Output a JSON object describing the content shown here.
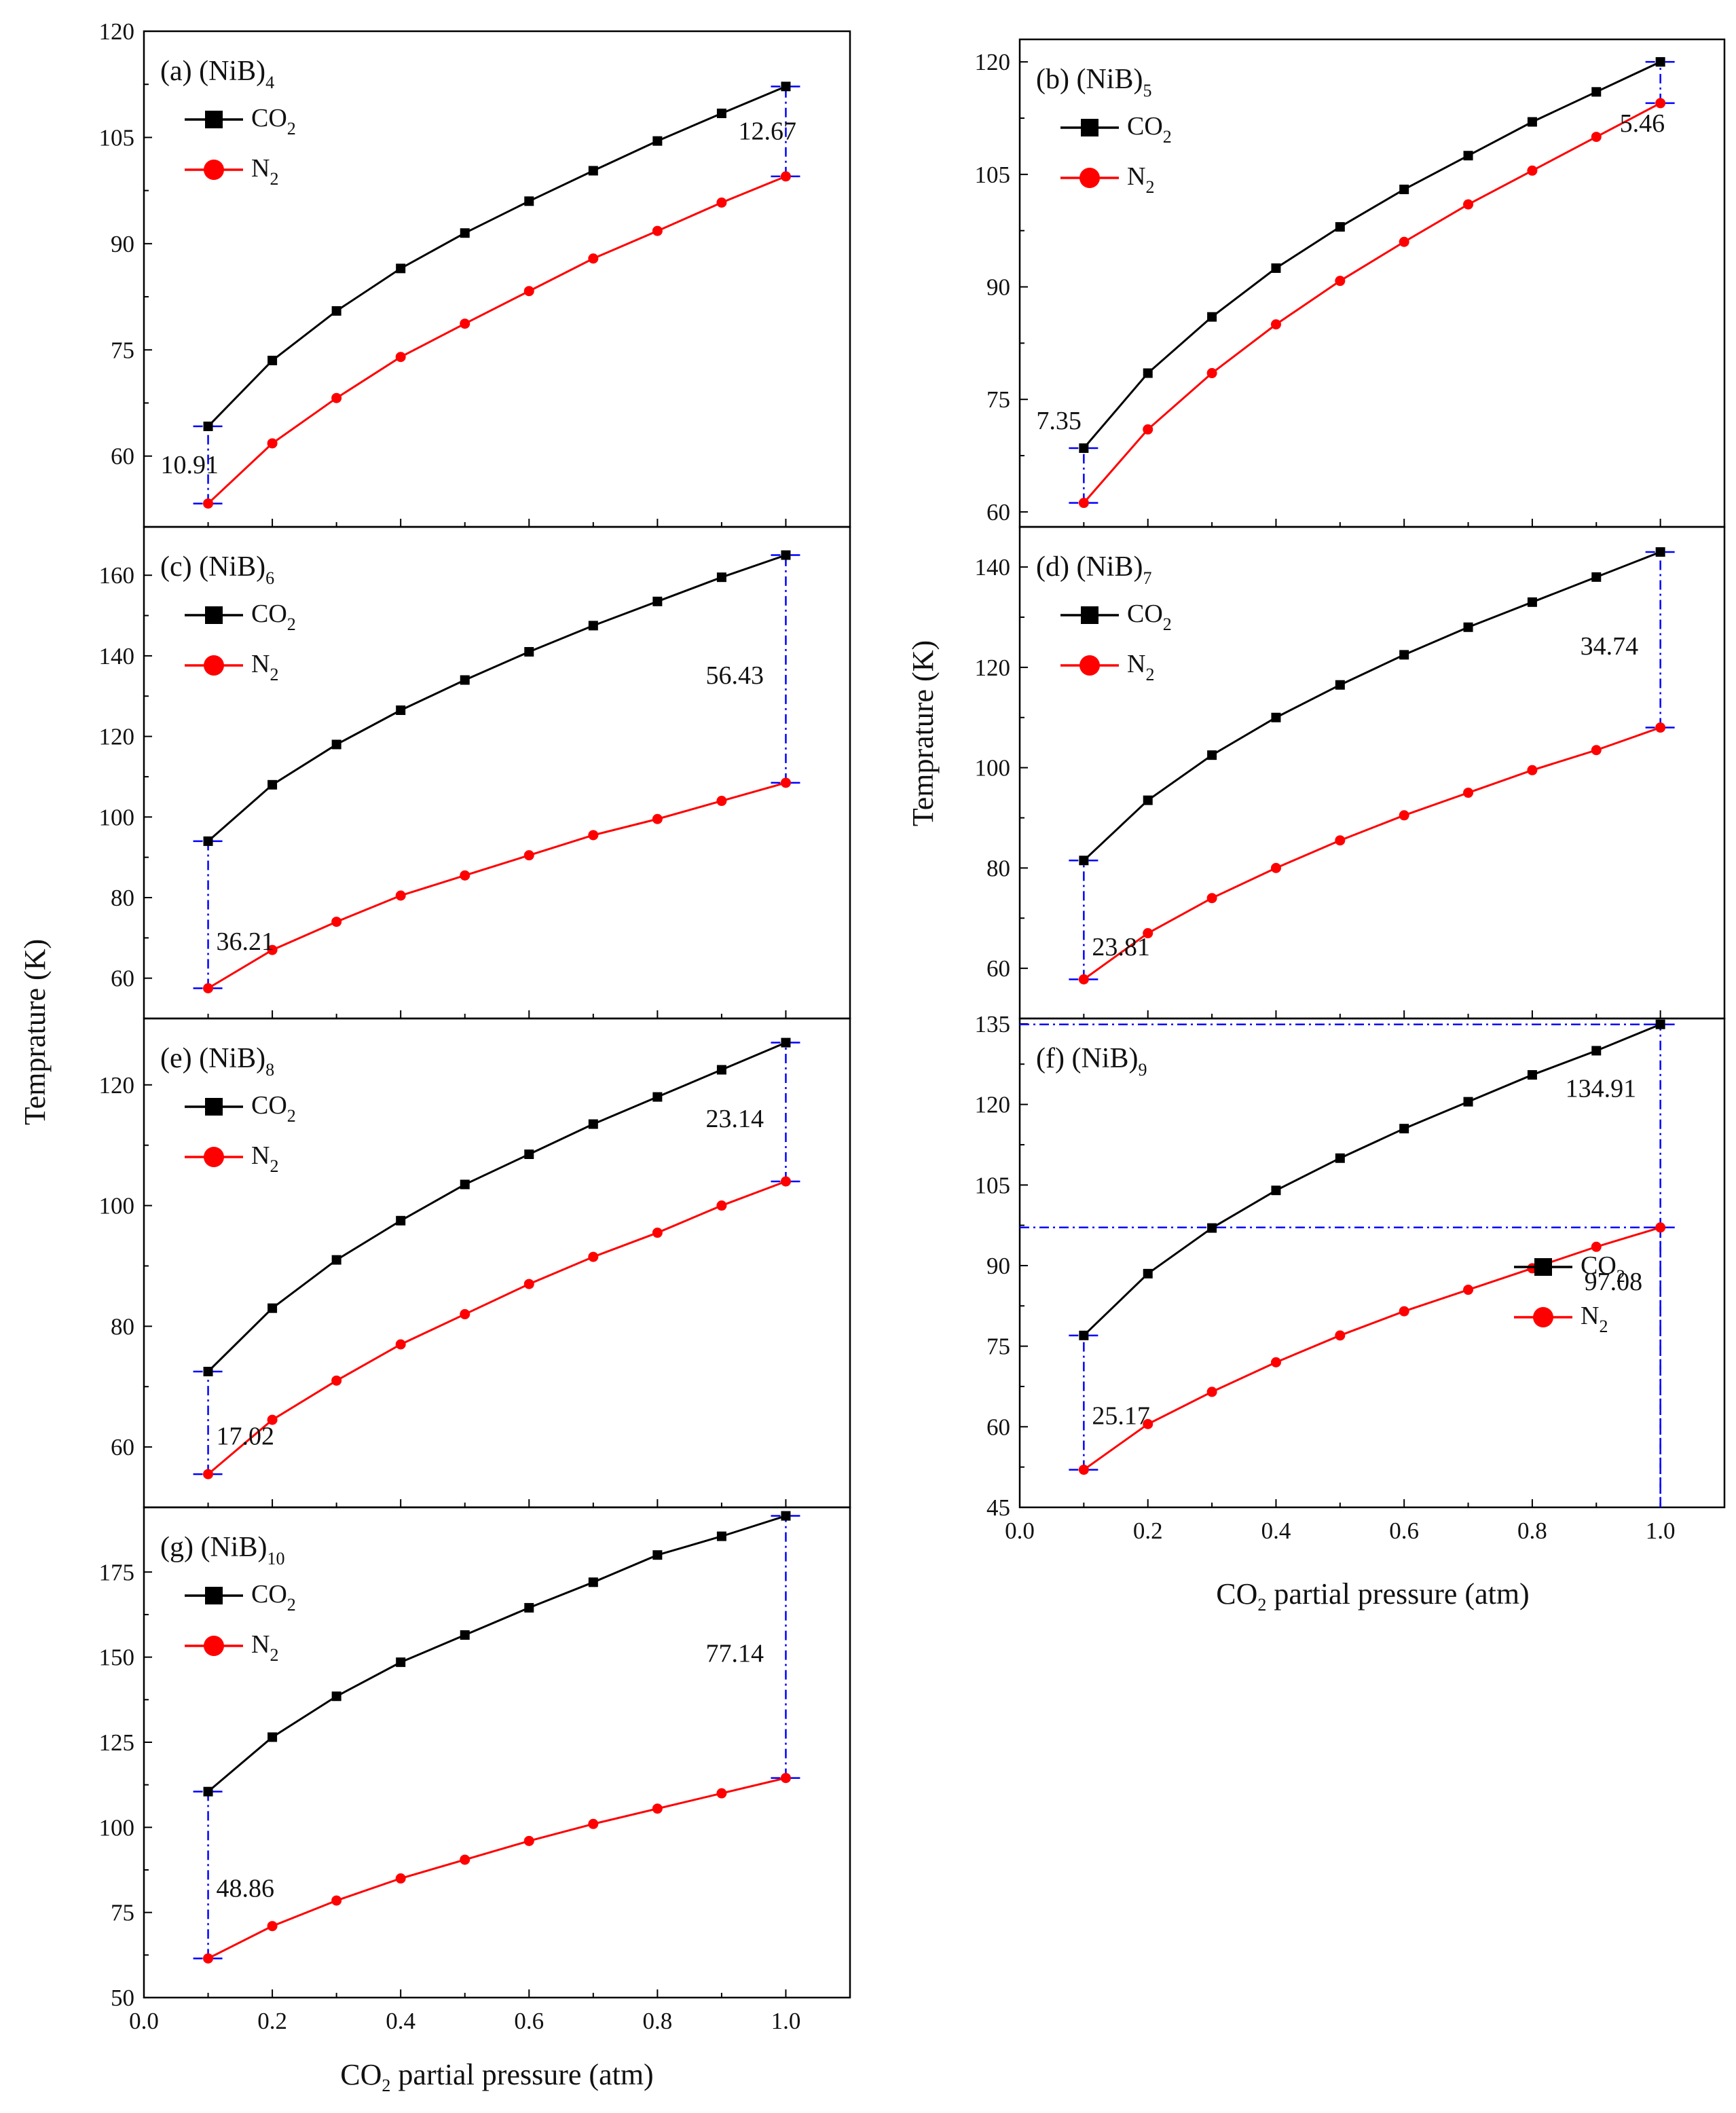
{
  "figure": {
    "ylabel": "Temprature (K)",
    "xlabel_left": {
      "main": "CO",
      "sub": "2",
      "rest": " partial pressure (atm)"
    },
    "xlabel_right": {
      "main": "CO",
      "sub": "2",
      "rest": " partial pressure (atm)"
    },
    "colors": {
      "co2": "#000000",
      "n2": "#ff0000",
      "guide": "#0000ff"
    }
  },
  "chart_data": [
    {
      "type": "line",
      "label_prefix": "(a) (NiB)",
      "label_sub": "4",
      "x": [
        0.1,
        0.2,
        0.3,
        0.4,
        0.5,
        0.6,
        0.7,
        0.8,
        0.9,
        1.0
      ],
      "series": [
        {
          "name": "CO2",
          "legend_main": "CO",
          "legend_sub": "2",
          "values": [
            64.2,
            73.5,
            80.5,
            86.5,
            91.5,
            96.0,
            100.3,
            104.5,
            108.4,
            112.2
          ]
        },
        {
          "name": "N2",
          "legend_main": "N",
          "legend_sub": "2",
          "values": [
            53.3,
            61.8,
            68.2,
            74.0,
            78.7,
            83.3,
            87.9,
            91.8,
            95.8,
            99.5
          ]
        }
      ],
      "ylim": [
        50,
        120
      ],
      "yticks": [
        60,
        75,
        90,
        105,
        120
      ],
      "xlim": [
        0,
        1.1
      ],
      "xticks": [
        0.0,
        0.2,
        0.4,
        0.6,
        0.8,
        1.0
      ],
      "legend": "top-left",
      "annotations": [
        {
          "text": "10.91",
          "x": 0.1,
          "y_low": 53.3,
          "y_high": 64.2
        },
        {
          "text": "12.67",
          "x": 1.0,
          "y_low": 99.5,
          "y_high": 112.2
        }
      ]
    },
    {
      "type": "line",
      "label_prefix": "(b) (NiB)",
      "label_sub": "5",
      "x": [
        0.1,
        0.2,
        0.3,
        0.4,
        0.5,
        0.6,
        0.7,
        0.8,
        0.9,
        1.0
      ],
      "series": [
        {
          "name": "CO2",
          "legend_main": "CO",
          "legend_sub": "2",
          "values": [
            68.5,
            78.5,
            86.0,
            92.5,
            98.0,
            103.0,
            107.5,
            112.0,
            116.0,
            120.0
          ]
        },
        {
          "name": "N2",
          "legend_main": "N",
          "legend_sub": "2",
          "values": [
            61.2,
            71.0,
            78.5,
            85.0,
            90.8,
            96.0,
            101.0,
            105.5,
            110.0,
            114.5
          ]
        }
      ],
      "ylim": [
        58,
        123
      ],
      "yticks": [
        60,
        75,
        90,
        105,
        120
      ],
      "xlim": [
        0,
        1.1
      ],
      "xticks": [
        0.0,
        0.2,
        0.4,
        0.6,
        0.8,
        1.0
      ],
      "legend": "top-left",
      "annotations": [
        {
          "text": "7.35",
          "x": 0.1,
          "y_low": 61.2,
          "y_high": 68.5
        },
        {
          "text": "5.46",
          "x": 1.0,
          "y_low": 114.5,
          "y_high": 120.0
        }
      ]
    },
    {
      "type": "line",
      "label_prefix": "(c) (NiB)",
      "label_sub": "6",
      "x": [
        0.1,
        0.2,
        0.3,
        0.4,
        0.5,
        0.6,
        0.7,
        0.8,
        0.9,
        1.0
      ],
      "series": [
        {
          "name": "CO2",
          "legend_main": "CO",
          "legend_sub": "2",
          "values": [
            94.0,
            108.0,
            118.0,
            126.5,
            134.0,
            141.0,
            147.5,
            153.5,
            159.5,
            165.0
          ]
        },
        {
          "name": "N2",
          "legend_main": "N",
          "legend_sub": "2",
          "values": [
            57.5,
            67.0,
            74.0,
            80.5,
            85.5,
            90.5,
            95.5,
            99.5,
            104.0,
            108.5
          ]
        }
      ],
      "ylim": [
        50,
        172
      ],
      "yticks": [
        60,
        80,
        100,
        120,
        140,
        160
      ],
      "xlim": [
        0,
        1.1
      ],
      "xticks": [
        0.0,
        0.2,
        0.4,
        0.6,
        0.8,
        1.0
      ],
      "legend": "top-left",
      "annotations": [
        {
          "text": "36.21",
          "x": 0.1,
          "y_low": 57.5,
          "y_high": 94.0
        },
        {
          "text": "56.43",
          "x": 1.0,
          "y_low": 108.5,
          "y_high": 165.0
        }
      ]
    },
    {
      "type": "line",
      "label_prefix": "(d) (NiB)",
      "label_sub": "7",
      "x": [
        0.1,
        0.2,
        0.3,
        0.4,
        0.5,
        0.6,
        0.7,
        0.8,
        0.9,
        1.0
      ],
      "series": [
        {
          "name": "CO2",
          "legend_main": "CO",
          "legend_sub": "2",
          "values": [
            81.5,
            93.5,
            102.5,
            110.0,
            116.5,
            122.5,
            128.0,
            133.0,
            138.0,
            143.0
          ]
        },
        {
          "name": "N2",
          "legend_main": "N",
          "legend_sub": "2",
          "values": [
            57.8,
            67.0,
            74.0,
            80.0,
            85.5,
            90.5,
            95.0,
            99.5,
            103.5,
            108.0
          ]
        }
      ],
      "ylim": [
        50,
        148
      ],
      "yticks": [
        60,
        80,
        100,
        120,
        140
      ],
      "xlim": [
        0,
        1.1
      ],
      "xticks": [
        0.0,
        0.2,
        0.4,
        0.6,
        0.8,
        1.0
      ],
      "legend": "top-left",
      "annotations": [
        {
          "text": "23.81",
          "x": 0.1,
          "y_low": 57.8,
          "y_high": 81.5
        },
        {
          "text": "34.74",
          "x": 1.0,
          "y_low": 108.0,
          "y_high": 143.0
        }
      ]
    },
    {
      "type": "line",
      "label_prefix": "(e) (NiB)",
      "label_sub": "8",
      "x": [
        0.1,
        0.2,
        0.3,
        0.4,
        0.5,
        0.6,
        0.7,
        0.8,
        0.9,
        1.0
      ],
      "series": [
        {
          "name": "CO2",
          "legend_main": "CO",
          "legend_sub": "2",
          "values": [
            72.5,
            83.0,
            91.0,
            97.5,
            103.5,
            108.5,
            113.5,
            118.0,
            122.5,
            127.0
          ]
        },
        {
          "name": "N2",
          "legend_main": "N",
          "legend_sub": "2",
          "values": [
            55.5,
            64.5,
            71.0,
            77.0,
            82.0,
            87.0,
            91.5,
            95.5,
            100.0,
            104.0
          ]
        }
      ],
      "ylim": [
        50,
        131
      ],
      "yticks": [
        60,
        80,
        100,
        120
      ],
      "xlim": [
        0,
        1.1
      ],
      "xticks": [
        0.0,
        0.2,
        0.4,
        0.6,
        0.8,
        1.0
      ],
      "legend": "top-left",
      "annotations": [
        {
          "text": "17.02",
          "x": 0.1,
          "y_low": 55.5,
          "y_high": 72.5
        },
        {
          "text": "23.14",
          "x": 1.0,
          "y_low": 104.0,
          "y_high": 127.0
        }
      ]
    },
    {
      "type": "line",
      "label_prefix": "(f) (NiB)",
      "label_sub": "9",
      "x": [
        0.1,
        0.2,
        0.3,
        0.4,
        0.5,
        0.6,
        0.7,
        0.8,
        0.9,
        1.0
      ],
      "series": [
        {
          "name": "CO2",
          "legend_main": "CO",
          "legend_sub": "2",
          "values": [
            77.0,
            88.5,
            97.0,
            104.0,
            110.0,
            115.5,
            120.5,
            125.5,
            130.0,
            134.9
          ]
        },
        {
          "name": "N2",
          "legend_main": "N",
          "legend_sub": "2",
          "values": [
            52.0,
            60.5,
            66.5,
            72.0,
            77.0,
            81.5,
            85.5,
            89.5,
            93.5,
            97.1
          ]
        }
      ],
      "ylim": [
        45,
        136
      ],
      "yticks": [
        45,
        60,
        75,
        90,
        105,
        120,
        135
      ],
      "xlim": [
        0,
        1.1
      ],
      "xticks": [
        0.0,
        0.2,
        0.4,
        0.6,
        0.8,
        1.0
      ],
      "legend": "bottom-right",
      "annotations": [
        {
          "text": "25.17",
          "x": 0.1,
          "y_low": 52.0,
          "y_high": 77.0
        },
        {
          "text": "134.91",
          "x": 1.0,
          "y_low": 97.1,
          "y_high": 134.9
        },
        {
          "text": "97.08",
          "x": 1.0,
          "y_low": 45,
          "y_high": 97.1
        }
      ]
    },
    {
      "type": "line",
      "label_prefix": "(g) (NiB)",
      "label_sub": "10",
      "x": [
        0.1,
        0.2,
        0.3,
        0.4,
        0.5,
        0.6,
        0.7,
        0.8,
        0.9,
        1.0
      ],
      "series": [
        {
          "name": "CO2",
          "legend_main": "CO",
          "legend_sub": "2",
          "values": [
            110.5,
            126.5,
            138.5,
            148.5,
            156.5,
            164.5,
            172.0,
            180.0,
            185.5,
            191.5
          ]
        },
        {
          "name": "N2",
          "legend_main": "N",
          "legend_sub": "2",
          "values": [
            61.5,
            71.0,
            78.5,
            85.0,
            90.5,
            96.0,
            101.0,
            105.5,
            110.0,
            114.5
          ]
        }
      ],
      "ylim": [
        50,
        194
      ],
      "yticks": [
        50,
        75,
        100,
        125,
        150,
        175
      ],
      "xlim": [
        0,
        1.1
      ],
      "xticks": [
        0.0,
        0.2,
        0.4,
        0.6,
        0.8,
        1.0
      ],
      "legend": "top-left",
      "annotations": [
        {
          "text": "48.86",
          "x": 0.1,
          "y_low": 61.5,
          "y_high": 110.5
        },
        {
          "text": "77.14",
          "x": 1.0,
          "y_low": 114.5,
          "y_high": 191.5
        }
      ]
    }
  ]
}
